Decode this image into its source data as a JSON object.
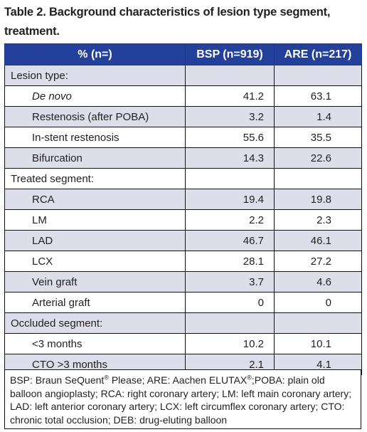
{
  "title": "Table 2. Background characteristics of lesion type segment, treatment.",
  "header": [
    "% (n=)",
    "BSP (n=919)",
    "ARE (n=217)"
  ],
  "rows": [
    {
      "label": "Lesion type:",
      "bsp": "",
      "are": "",
      "kind": "group"
    },
    {
      "label": "De novo",
      "bsp": "41.2",
      "are": "63.1",
      "kind": "item"
    },
    {
      "label": "Restenosis (after POBA)",
      "bsp": "3.2",
      "are": "1.4",
      "kind": "item"
    },
    {
      "label": "In-stent restenosis",
      "bsp": "55.6",
      "are": "35.5",
      "kind": "item"
    },
    {
      "label": "Bifurcation",
      "bsp": "14.3",
      "are": "22.6",
      "kind": "item"
    },
    {
      "label": "Treated segment:",
      "bsp": "",
      "are": "",
      "kind": "group"
    },
    {
      "label": "RCA",
      "bsp": "19.4",
      "are": "19.8",
      "kind": "item"
    },
    {
      "label": "LM",
      "bsp": "2.2",
      "are": "2.3",
      "kind": "item"
    },
    {
      "label": "LAD",
      "bsp": "46.7",
      "are": "46.1",
      "kind": "item"
    },
    {
      "label": "LCX",
      "bsp": "28.1",
      "are": "27.2",
      "kind": "item"
    },
    {
      "label": "Vein graft",
      "bsp": "3.7",
      "are": "4.6",
      "kind": "item"
    },
    {
      "label": "Arterial graft",
      "bsp": "0",
      "are": "0",
      "kind": "item"
    },
    {
      "label": "Occluded segment:",
      "bsp": "",
      "are": "",
      "kind": "group"
    },
    {
      "label": "<3 months",
      "bsp": "10.2",
      "are": "10.1",
      "kind": "item"
    },
    {
      "label": "CTO >3 months",
      "bsp": "2.1",
      "are": "4.1",
      "kind": "item"
    }
  ],
  "footnote": {
    "part1": "BSP: Braun SeQuent",
    "reg1": "®",
    "part2": " Please; ARE: Aachen ELUTAX",
    "reg2": "®",
    "part3": ";POBA: plain old balloon angioplasty; RCA: right coronary artery; LM: left main coronary artery; LAD: left anterior coronary artery; LCX: left circumflex coronary artery; CTO: chronic total occlusion; DEB: drug-eluting balloon"
  }
}
